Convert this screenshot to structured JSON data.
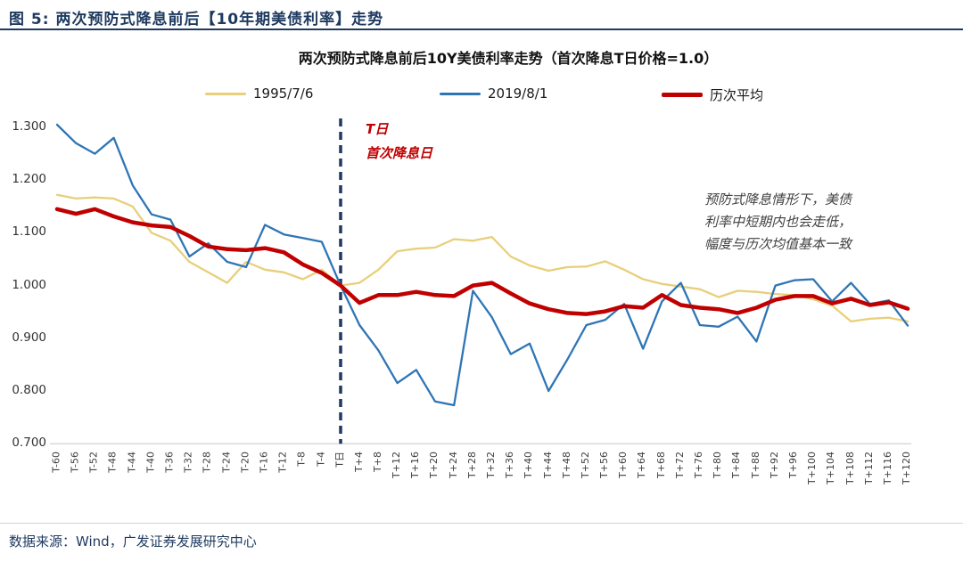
{
  "figure_header": {
    "title": "图 5:  两次预防式降息前后【10年期美债利率】走势"
  },
  "chart": {
    "title": "两次预防式降息前后10Y美债利率走势（首次降息T日价格=1.0）",
    "legend": [
      {
        "label": "1995/7/6"
      },
      {
        "label": "2019/8/1"
      },
      {
        "label": "历次平均"
      }
    ],
    "t_day_annotation": {
      "line1": "T日",
      "line2": "首次降息日",
      "color": "#c00000"
    },
    "side_annotation": {
      "lines": [
        "预防式降息情形下，美债",
        "利率中短期内也会走低，",
        "幅度与历次均值基本一致"
      ]
    }
  },
  "chart_data": {
    "type": "line",
    "title": "两次预防式降息前后10Y美债利率走势（首次降息T日价格=1.0）",
    "x_unit": "交易日（相对首次降息日T）",
    "categories": [
      "T-60",
      "T-56",
      "T-52",
      "T-48",
      "T-44",
      "T-40",
      "T-36",
      "T-32",
      "T-28",
      "T-24",
      "T-20",
      "T-16",
      "T-12",
      "T-8",
      "T-4",
      "T日",
      "T+4",
      "T+8",
      "T+12",
      "T+16",
      "T+20",
      "T+24",
      "T+28",
      "T+32",
      "T+36",
      "T+40",
      "T+44",
      "T+48",
      "T+52",
      "T+56",
      "T+60",
      "T+64",
      "T+68",
      "T+72",
      "T+76",
      "T+80",
      "T+84",
      "T+88",
      "T+92",
      "T+96",
      "T+100",
      "T+104",
      "T+108",
      "T+112",
      "T+116",
      "T+120"
    ],
    "series": [
      {
        "name": "1995/7/6",
        "color": "#e8cf7a",
        "stroke_width": 2.3,
        "values": [
          1.172,
          1.165,
          1.167,
          1.165,
          1.15,
          1.1,
          1.085,
          1.045,
          1.025,
          1.005,
          1.045,
          1.03,
          1.025,
          1.012,
          1.03,
          1.0,
          1.005,
          1.03,
          1.065,
          1.07,
          1.072,
          1.088,
          1.085,
          1.092,
          1.055,
          1.038,
          1.028,
          1.035,
          1.036,
          1.046,
          1.03,
          1.012,
          1.003,
          0.998,
          0.993,
          0.978,
          0.99,
          0.988,
          0.984,
          0.982,
          0.974,
          0.962,
          0.932,
          0.937,
          0.939,
          0.932
        ]
      },
      {
        "name": "2019/8/1",
        "color": "#2e75b6",
        "stroke_width": 2.3,
        "values": [
          1.305,
          1.27,
          1.25,
          1.28,
          1.19,
          1.135,
          1.125,
          1.055,
          1.08,
          1.045,
          1.035,
          1.115,
          1.097,
          1.09,
          1.083,
          1.0,
          0.925,
          0.877,
          0.815,
          0.84,
          0.78,
          0.773,
          0.99,
          0.94,
          0.87,
          0.89,
          0.8,
          0.86,
          0.925,
          0.935,
          0.965,
          0.88,
          0.97,
          1.005,
          0.925,
          0.922,
          0.941,
          0.894,
          1.0,
          1.01,
          1.012,
          0.97,
          1.005,
          0.965,
          0.972,
          0.924
        ]
      },
      {
        "name": "历次平均",
        "color": "#c00000",
        "stroke_width": 4.5,
        "values": [
          1.145,
          1.136,
          1.145,
          1.131,
          1.12,
          1.114,
          1.111,
          1.094,
          1.074,
          1.069,
          1.067,
          1.071,
          1.063,
          1.04,
          1.024,
          1.0,
          0.967,
          0.982,
          0.982,
          0.988,
          0.982,
          0.98,
          1.0,
          1.005,
          0.985,
          0.966,
          0.955,
          0.948,
          0.946,
          0.951,
          0.961,
          0.958,
          0.982,
          0.963,
          0.958,
          0.955,
          0.948,
          0.958,
          0.973,
          0.98,
          0.98,
          0.966,
          0.975,
          0.963,
          0.968,
          0.956
        ]
      }
    ],
    "y_ticks": [
      "1.300",
      "1.200",
      "1.100",
      "1.000",
      "0.900",
      "0.800",
      "0.700"
    ],
    "ylim": [
      0.7,
      1.3
    ],
    "grid": false,
    "legend_position": "top",
    "marker_line": {
      "at_category": "T日",
      "style": "dashed",
      "color": "#1f3864"
    }
  },
  "footer": {
    "source": "数据来源：Wind，广发证券发展研究中心"
  }
}
